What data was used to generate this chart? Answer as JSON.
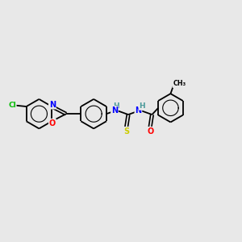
{
  "background_color": "#e8e8e8",
  "bond_color": "#000000",
  "atom_colors": {
    "Cl": "#00bb00",
    "N": "#0000ff",
    "O": "#ff0000",
    "S": "#cccc00",
    "C": "#000000",
    "H": "#4a9a9a"
  },
  "figsize": [
    3.0,
    3.0
  ],
  "dpi": 100
}
